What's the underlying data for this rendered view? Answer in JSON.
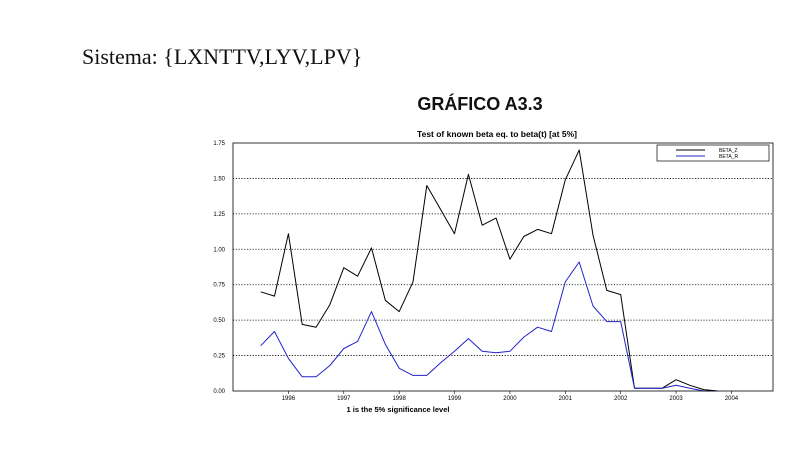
{
  "header": {
    "sistema": "Sistema:  {LXNTTV,LYV,LPV}",
    "grafico": "GRÁFICO A3.3"
  },
  "colors": {
    "beta_z": "#000000",
    "beta_r": "#2323c8",
    "grid": "#000000"
  },
  "chart_data": {
    "type": "line",
    "title": "Test of known beta eq. to beta(t) [at 5%]",
    "xlabel": "1 is the 5% significance level",
    "ylabel": "",
    "ylim": [
      0,
      1.75
    ],
    "y_ticks": [
      "0.00",
      "0.25",
      "0.50",
      "0.75",
      "1.00",
      "1.25",
      "1.50",
      "1.75"
    ],
    "x_range": [
      1995.0,
      2004.75
    ],
    "x_ticks": [
      {
        "label": "1996",
        "x": 1996
      },
      {
        "label": "1997",
        "x": 1997
      },
      {
        "label": "1998",
        "x": 1998
      },
      {
        "label": "1999",
        "x": 1999
      },
      {
        "label": "2000",
        "x": 2000
      },
      {
        "label": "2001",
        "x": 2001
      },
      {
        "label": "2002",
        "x": 2002
      },
      {
        "label": "2003",
        "x": 2003
      },
      {
        "label": "2004",
        "x": 2004
      }
    ],
    "grid": "horizontal-dotted",
    "legend_position": "top-right",
    "series": [
      {
        "name": "BETA_Z",
        "x": [
          1995.5,
          1995.75,
          1996.0,
          1996.25,
          1996.5,
          1996.75,
          1997.0,
          1997.25,
          1997.5,
          1997.75,
          1998.0,
          1998.25,
          1998.5,
          1998.75,
          1999.0,
          1999.25,
          1999.5,
          1999.75,
          2000.0,
          2000.25,
          2000.5,
          2000.75,
          2001.0,
          2001.25,
          2001.5,
          2001.75,
          2002.0,
          2002.25,
          2002.5,
          2002.75,
          2003.0,
          2003.25,
          2003.5,
          2003.75
        ],
        "values": [
          0.7,
          0.67,
          1.11,
          0.47,
          0.45,
          0.61,
          0.87,
          0.81,
          1.01,
          0.64,
          0.56,
          0.77,
          1.45,
          1.28,
          1.11,
          1.53,
          1.17,
          1.22,
          0.93,
          1.09,
          1.14,
          1.11,
          1.49,
          1.7,
          1.1,
          0.71,
          0.68,
          0.02,
          0.02,
          0.02,
          0.08,
          0.04,
          0.01,
          0.0
        ]
      },
      {
        "name": "BETA_R",
        "x": [
          1995.5,
          1995.75,
          1996.0,
          1996.25,
          1996.5,
          1996.75,
          1997.0,
          1997.25,
          1997.5,
          1997.75,
          1998.0,
          1998.25,
          1998.5,
          1998.75,
          1999.0,
          1999.25,
          1999.5,
          1999.75,
          2000.0,
          2000.25,
          2000.5,
          2000.75,
          2001.0,
          2001.25,
          2001.5,
          2001.75,
          2002.0,
          2002.25,
          2002.5,
          2002.75,
          2003.0,
          2003.25,
          2003.5,
          2003.75
        ],
        "values": [
          0.32,
          0.42,
          0.23,
          0.1,
          0.1,
          0.18,
          0.3,
          0.35,
          0.56,
          0.33,
          0.16,
          0.11,
          0.11,
          0.2,
          0.28,
          0.37,
          0.28,
          0.27,
          0.28,
          0.38,
          0.45,
          0.42,
          0.77,
          0.91,
          0.6,
          0.49,
          0.49,
          0.02,
          0.02,
          0.02,
          0.04,
          0.02,
          0.0,
          0.0
        ]
      }
    ]
  }
}
